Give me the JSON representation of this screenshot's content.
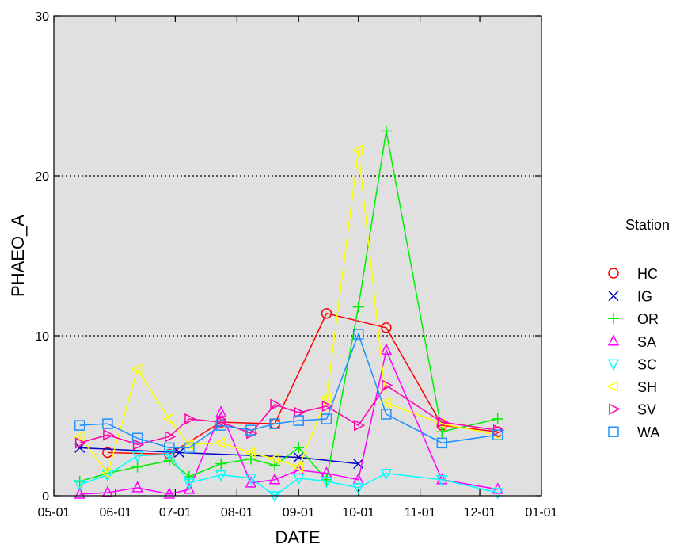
{
  "chart_data": {
    "type": "line",
    "xlabel": "DATE",
    "ylabel": "PHAEO_A",
    "ylim": [
      0,
      30
    ],
    "yticks": [
      "0",
      "10",
      "20",
      "30"
    ],
    "xlim": [
      "2014-05-01",
      "2015-01-01"
    ],
    "xticks": [
      {
        "label": "05-01",
        "date": "2014-05-01"
      },
      {
        "label": "06-01",
        "date": "2014-06-01"
      },
      {
        "label": "07-01",
        "date": "2014-07-01"
      },
      {
        "label": "08-01",
        "date": "2014-08-01"
      },
      {
        "label": "09-01",
        "date": "2014-09-01"
      },
      {
        "label": "10-01",
        "date": "2014-10-01"
      },
      {
        "label": "11-01",
        "date": "2014-11-01"
      },
      {
        "label": "12-01",
        "date": "2014-12-01"
      },
      {
        "label": "01-01",
        "date": "2015-01-01"
      }
    ],
    "grid": "horizontal dotted",
    "background": "#e0e0e0",
    "legend_title": "Station",
    "legend_position": "right",
    "series": [
      {
        "name": "HC",
        "color": "#ff0000",
        "marker": "circle",
        "points": [
          [
            "2014-05-28",
            2.7
          ],
          [
            "2014-06-28",
            2.6
          ],
          [
            "2014-07-24",
            4.6
          ],
          [
            "2014-08-20",
            4.5
          ],
          [
            "2014-09-15",
            11.4
          ],
          [
            "2014-10-15",
            10.5
          ],
          [
            "2014-11-12",
            4.4
          ],
          [
            "2014-12-10",
            4.0
          ]
        ]
      },
      {
        "name": "IG",
        "color": "#0000cc",
        "marker": "x",
        "points": [
          [
            "2014-05-14",
            3.0
          ],
          [
            "2014-07-03",
            2.7
          ],
          [
            "2014-09-01",
            2.4
          ],
          [
            "2014-10-01",
            2.0
          ]
        ]
      },
      {
        "name": "OR",
        "color": "#00ee00",
        "marker": "plus",
        "points": [
          [
            "2014-05-14",
            0.9
          ],
          [
            "2014-05-28",
            1.4
          ],
          [
            "2014-06-12",
            1.8
          ],
          [
            "2014-06-28",
            2.2
          ],
          [
            "2014-07-08",
            1.2
          ],
          [
            "2014-07-24",
            2.0
          ],
          [
            "2014-08-08",
            2.3
          ],
          [
            "2014-08-20",
            1.9
          ],
          [
            "2014-09-01",
            3.0
          ],
          [
            "2014-09-15",
            1.0
          ],
          [
            "2014-10-01",
            11.8
          ],
          [
            "2014-10-15",
            22.8
          ],
          [
            "2014-11-12",
            4.0
          ],
          [
            "2014-12-10",
            4.8
          ]
        ]
      },
      {
        "name": "SA",
        "color": "#ff00ff",
        "marker": "triangle-up",
        "points": [
          [
            "2014-05-14",
            0.1
          ],
          [
            "2014-05-28",
            0.2
          ],
          [
            "2014-06-12",
            0.5
          ],
          [
            "2014-06-28",
            0.1
          ],
          [
            "2014-07-08",
            0.4
          ],
          [
            "2014-07-24",
            5.2
          ],
          [
            "2014-08-08",
            0.8
          ],
          [
            "2014-08-20",
            1.0
          ],
          [
            "2014-09-01",
            1.6
          ],
          [
            "2014-09-15",
            1.4
          ],
          [
            "2014-10-01",
            1.0
          ],
          [
            "2014-10-15",
            9.1
          ],
          [
            "2014-11-12",
            1.0
          ],
          [
            "2014-12-10",
            0.4
          ]
        ]
      },
      {
        "name": "SC",
        "color": "#00ffff",
        "marker": "triangle-down",
        "points": [
          [
            "2014-05-14",
            0.7
          ],
          [
            "2014-05-28",
            1.3
          ],
          [
            "2014-06-12",
            2.5
          ],
          [
            "2014-06-28",
            2.6
          ],
          [
            "2014-07-08",
            0.8
          ],
          [
            "2014-07-24",
            1.3
          ],
          [
            "2014-08-08",
            1.1
          ],
          [
            "2014-08-20",
            0.0
          ],
          [
            "2014-09-01",
            1.1
          ],
          [
            "2014-09-15",
            0.9
          ],
          [
            "2014-10-01",
            0.5
          ],
          [
            "2014-10-15",
            1.4
          ],
          [
            "2014-11-12",
            1.0
          ],
          [
            "2014-12-10",
            0.2
          ]
        ]
      },
      {
        "name": "SH",
        "color": "#ffff00",
        "marker": "triangle-left",
        "points": [
          [
            "2014-05-14",
            3.7
          ],
          [
            "2014-05-28",
            1.4
          ],
          [
            "2014-06-12",
            7.9
          ],
          [
            "2014-06-28",
            4.8
          ],
          [
            "2014-07-08",
            3.2
          ],
          [
            "2014-07-24",
            3.3
          ],
          [
            "2014-08-08",
            2.7
          ],
          [
            "2014-08-20",
            2.3
          ],
          [
            "2014-09-01",
            1.8
          ],
          [
            "2014-09-15",
            6.1
          ],
          [
            "2014-10-01",
            21.6
          ],
          [
            "2014-10-15",
            5.8
          ],
          [
            "2014-11-12",
            4.5
          ],
          [
            "2014-12-10",
            3.8
          ]
        ]
      },
      {
        "name": "SV",
        "color": "#ff00aa",
        "marker": "triangle-right",
        "points": [
          [
            "2014-05-14",
            3.3
          ],
          [
            "2014-05-28",
            3.8
          ],
          [
            "2014-06-12",
            3.2
          ],
          [
            "2014-06-28",
            3.7
          ],
          [
            "2014-07-08",
            4.8
          ],
          [
            "2014-07-24",
            4.6
          ],
          [
            "2014-08-08",
            3.9
          ],
          [
            "2014-08-20",
            5.7
          ],
          [
            "2014-09-01",
            5.2
          ],
          [
            "2014-09-15",
            5.6
          ],
          [
            "2014-10-01",
            4.4
          ],
          [
            "2014-10-15",
            6.9
          ],
          [
            "2014-11-12",
            4.6
          ],
          [
            "2014-12-10",
            4.1
          ]
        ]
      },
      {
        "name": "WA",
        "color": "#1e90ff",
        "marker": "square",
        "points": [
          [
            "2014-05-14",
            4.4
          ],
          [
            "2014-05-28",
            4.5
          ],
          [
            "2014-06-12",
            3.6
          ],
          [
            "2014-06-28",
            3.0
          ],
          [
            "2014-07-08",
            3.0
          ],
          [
            "2014-07-24",
            4.4
          ],
          [
            "2014-08-08",
            4.1
          ],
          [
            "2014-08-20",
            4.5
          ],
          [
            "2014-09-01",
            4.7
          ],
          [
            "2014-09-15",
            4.8
          ],
          [
            "2014-10-01",
            10.1
          ],
          [
            "2014-10-15",
            5.1
          ],
          [
            "2014-11-12",
            3.3
          ],
          [
            "2014-12-10",
            3.8
          ]
        ]
      }
    ]
  }
}
